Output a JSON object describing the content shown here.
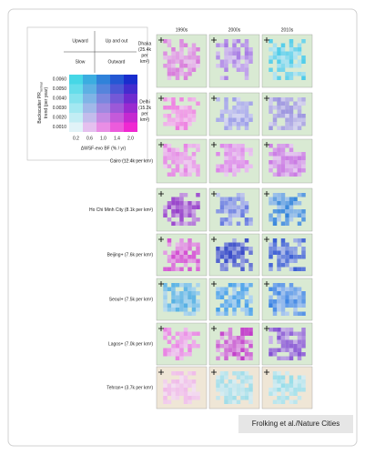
{
  "legend": {
    "quadrants": [
      "Upward",
      "Up and out",
      "Slow",
      "Outward"
    ],
    "y_label": [
      "Backscatter PR",
      "normal",
      "trend (per year)"
    ],
    "y_ticks": [
      "0.0060",
      "0.0050",
      "0.0040",
      "0.0030",
      "0.0020",
      "0.0010"
    ],
    "x_ticks": [
      "0.2",
      "0.6",
      "1.0",
      "1.4",
      "2.0"
    ],
    "x_label": "ΔWSF-evo BF (% / yr)"
  },
  "columns": [
    "1990s",
    "2000s",
    "2010s"
  ],
  "rows": [
    {
      "label": [
        "Dhaka",
        "(25.4k",
        "per",
        "km²)"
      ]
    },
    {
      "label": [
        "Delhi",
        "(15.2k",
        "per",
        "km²)"
      ]
    },
    {
      "label": [
        "Cairo (12.4k per km²)"
      ]
    },
    {
      "label": [
        "Ho Chi Minh City (8.1k per km²)"
      ]
    },
    {
      "label": [
        "Beijing+ (7.6k per km²)"
      ]
    },
    {
      "label": [
        "Seoul+ (7.5k per km²)"
      ]
    },
    {
      "label": [
        "Lagos+ (7.0k per km²)"
      ]
    },
    {
      "label": [
        "Tehran+ (3.7k per km²)"
      ]
    }
  ],
  "credit": "Frolking et al./Nature Cities"
}
